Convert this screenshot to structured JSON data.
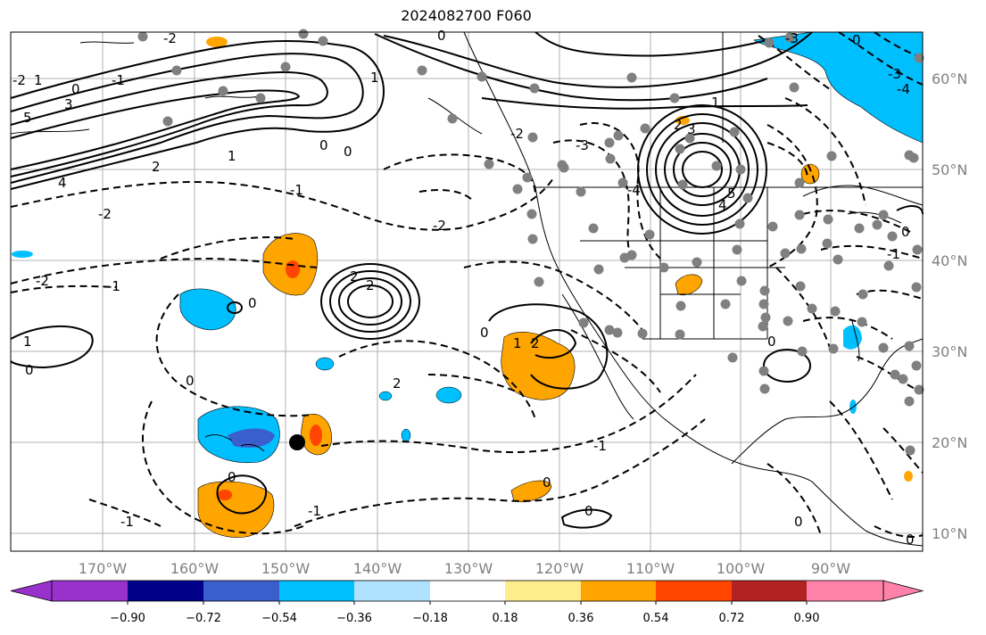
{
  "title": "2024082700 F060",
  "lon_labels": [
    "170°W",
    "160°W",
    "150°W",
    "140°W",
    "130°W",
    "120°W",
    "110°W",
    "100°W",
    "90°W"
  ],
  "lat_labels": [
    "60°N",
    "50°N",
    "40°N",
    "30°N",
    "20°N",
    "10°N"
  ],
  "colorbar": {
    "tick_labels": [
      "−0.90",
      "−0.72",
      "−0.54",
      "−0.36",
      "−0.18",
      "0.18",
      "0.36",
      "0.54",
      "0.72",
      "0.90"
    ],
    "colors": [
      "#9932CC",
      "#00008B",
      "#3A5FCD",
      "#00BFFF",
      "#B0E2FF",
      "#FFFFFF",
      "#FFEC8B",
      "#FFA500",
      "#FF4500",
      "#B22222",
      "#FF82AB"
    ]
  },
  "colors": {
    "contour": "#000000",
    "grid": "#b0b0b0",
    "station_dot": "#808080",
    "fill_orange": "#FFA500",
    "fill_red": "#FF4500",
    "fill_cyan": "#00BFFF",
    "fill_blue": "#3A5FCD"
  },
  "contour_labels": [
    "0",
    "2",
    "-1",
    "-2",
    "-3",
    "1",
    "-4",
    "-5",
    "3",
    "4",
    "5"
  ]
}
